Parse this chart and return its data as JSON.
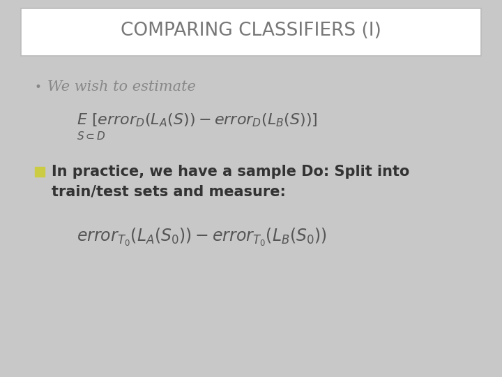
{
  "title": "COMPARING CLASSIFIERS (I)",
  "title_fontsize": 19,
  "title_color": "#777777",
  "background_color": "#c8c8c8",
  "title_box_color": "#ffffff",
  "title_box_edge": "#bbbbbb",
  "bullet1_text": "We wish to estimate",
  "bullet1_color": "#888888",
  "bullet2_line1": "In practice, we have a sample Do: Split into",
  "bullet2_line2": "train/test sets and measure:",
  "bullet2_color": "#333333",
  "bullet2_marker_color": "#cccc44",
  "text_fontsize": 15,
  "formula_fontsize": 15,
  "formula_color": "#555555"
}
